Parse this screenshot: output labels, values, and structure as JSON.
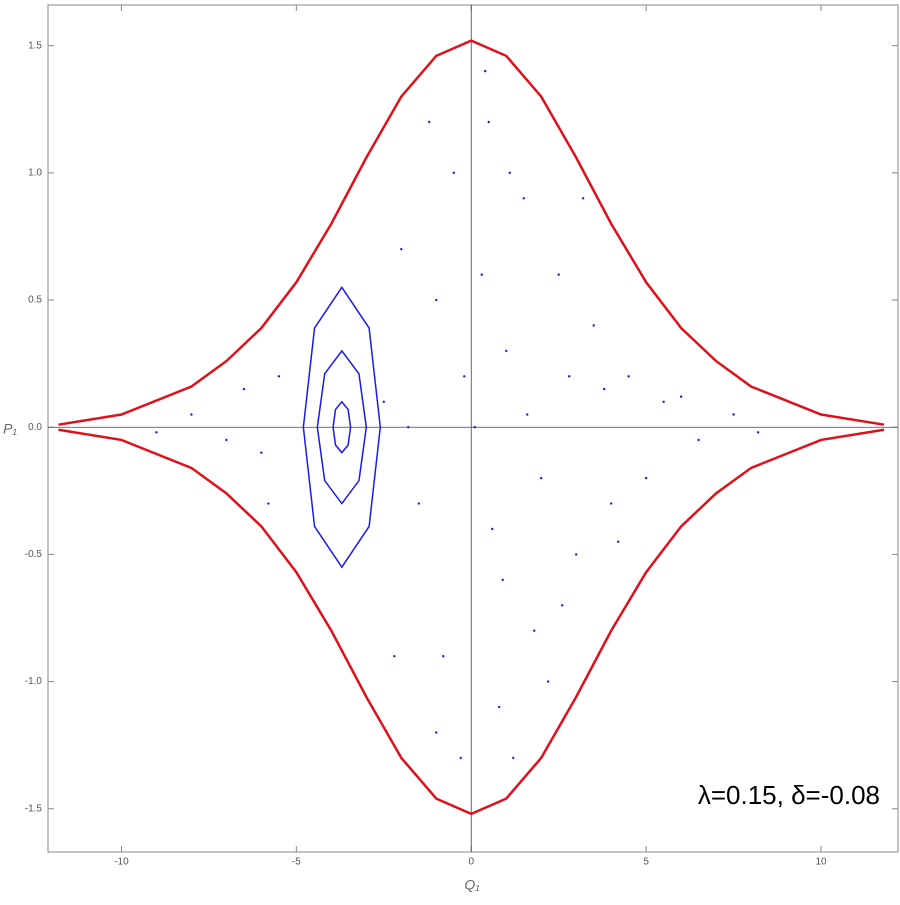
{
  "chart_data": {
    "type": "scatter",
    "xlabel": "Q₁",
    "ylabel": "P₁",
    "annotation": "λ=0.15, δ=-0.08",
    "xlim": [
      -12.1,
      12.2
    ],
    "ylim": [
      -1.67,
      1.66
    ],
    "xticks": [
      -10,
      -5,
      0,
      5,
      10
    ],
    "yticks": [
      -1.5,
      {
        "value": -1.0,
        "label": "-1.0"
      },
      -0.5,
      {
        "value": 0.0,
        "label": "0.0"
      },
      0.5,
      {
        "value": 1.0,
        "label": "1.0"
      },
      1.5
    ],
    "series": [
      {
        "color": "#1a1aee",
        "style": "points",
        "x": [
          0.5,
          1.5,
          2.5,
          3.5,
          4.5,
          1,
          2,
          3,
          0.8,
          1.8,
          4,
          5.5,
          6.5,
          7.5,
          8.2,
          0.3,
          0.6,
          2.8,
          1.2,
          0.4,
          -0.5,
          -1,
          -1.5,
          -0.8,
          -2,
          -2.2,
          -5.5,
          -6,
          -6.5,
          -7,
          -8,
          -9,
          -5.8,
          -1.2,
          -0.3,
          3.2,
          2.2,
          5,
          0.1,
          1.6,
          -2.5,
          -1.8,
          3.8,
          6,
          -0.2,
          2.6,
          1.1,
          4.2,
          -1,
          0.9
        ],
        "values": [
          1.2,
          0.9,
          0.6,
          0.4,
          0.2,
          0.3,
          -0.2,
          -0.5,
          -1.1,
          -0.8,
          -0.3,
          0.1,
          -0.05,
          0.05,
          -0.02,
          0.6,
          -0.4,
          0.2,
          -1.3,
          1.4,
          1.0,
          0.5,
          -0.3,
          -0.9,
          0.7,
          -0.9,
          0.2,
          -0.1,
          0.15,
          -0.05,
          0.05,
          -0.02,
          -0.3,
          1.2,
          -1.3,
          0.9,
          -1.0,
          -0.2,
          0,
          0.05,
          0.1,
          0,
          0.15,
          0.12,
          0.2,
          -0.7,
          1.0,
          -0.45,
          -1.2,
          -0.6
        ]
      },
      {
        "color": "#1a1aee",
        "style": "line",
        "x": [
          -3.45,
          -3.52,
          -3.7,
          -3.88,
          -3.95,
          -3.88,
          -3.7,
          -3.52,
          -3.45
        ],
        "values": [
          0,
          0.07,
          0.1,
          0.07,
          0,
          -0.07,
          -0.1,
          -0.07,
          0
        ]
      },
      {
        "color": "#1a1aee",
        "style": "line",
        "x": [
          -3.0,
          -3.21,
          -3.7,
          -4.19,
          -4.4,
          -4.19,
          -3.7,
          -3.21,
          -3.0
        ],
        "values": [
          0,
          0.21,
          0.3,
          0.21,
          0,
          -0.21,
          -0.3,
          -0.21,
          0
        ]
      },
      {
        "color": "#1a1aee",
        "style": "line",
        "x": [
          -2.6,
          -2.92,
          -3.7,
          -4.48,
          -4.8,
          -4.48,
          -3.7,
          -2.92,
          -2.6
        ],
        "values": [
          0,
          0.39,
          0.55,
          0.39,
          0,
          -0.39,
          -0.55,
          -0.39,
          0
        ]
      },
      {
        "color": "#e0101a",
        "style": "line",
        "x": [
          -11.8,
          -10,
          -8,
          -7,
          -6,
          -5,
          -4,
          -3,
          -2,
          -1,
          0,
          1,
          2,
          3,
          4,
          5,
          6,
          7,
          8,
          10,
          11.8
        ],
        "values": [
          0.01,
          0.05,
          0.16,
          0.26,
          0.39,
          0.57,
          0.8,
          1.06,
          1.3,
          1.46,
          1.52,
          1.46,
          1.3,
          1.06,
          0.8,
          0.57,
          0.39,
          0.26,
          0.16,
          0.05,
          0.01
        ]
      },
      {
        "color": "#e0101a",
        "style": "line",
        "x": [
          -11.8,
          -10,
          -8,
          -7,
          -6,
          -5,
          -4,
          -3,
          -2,
          -1,
          0,
          1,
          2,
          3,
          4,
          5,
          6,
          7,
          8,
          10,
          11.8
        ],
        "values": [
          -0.01,
          -0.05,
          -0.16,
          -0.26,
          -0.39,
          -0.57,
          -0.8,
          -1.06,
          -1.3,
          -1.46,
          -1.52,
          -1.46,
          -1.3,
          -1.06,
          -0.8,
          -0.57,
          -0.39,
          -0.26,
          -0.16,
          -0.05,
          -0.01
        ]
      }
    ]
  }
}
